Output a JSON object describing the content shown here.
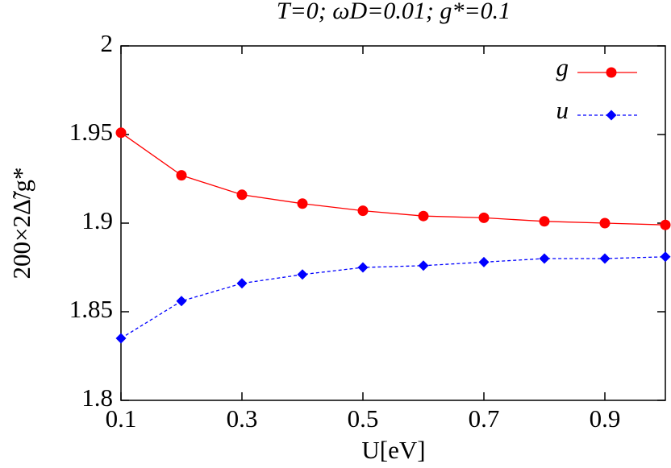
{
  "chart_data": {
    "type": "line",
    "title": "T=0; ωD=0.01; g*=0.1",
    "xlabel": "U[eV]",
    "ylabel": "200×2Δ̃/g*",
    "x": [
      0.1,
      0.2,
      0.3,
      0.4,
      0.5,
      0.6,
      0.7,
      0.8,
      0.9,
      1.0
    ],
    "series": [
      {
        "name": "g",
        "color": "#ff0000",
        "marker": "circle",
        "dashed": false,
        "values": [
          1.951,
          1.927,
          1.916,
          1.911,
          1.907,
          1.904,
          1.903,
          1.901,
          1.9,
          1.899
        ]
      },
      {
        "name": "u",
        "color": "#0000ff",
        "marker": "diamond",
        "dashed": true,
        "values": [
          1.835,
          1.856,
          1.866,
          1.871,
          1.875,
          1.876,
          1.878,
          1.88,
          1.88,
          1.881
        ]
      }
    ],
    "xlim": [
      0.1,
      1.0
    ],
    "xticks": [
      0.1,
      0.3,
      0.5,
      0.7,
      0.9
    ],
    "ylim": [
      1.8,
      2
    ],
    "yticks": [
      1.8,
      1.85,
      1.9,
      1.95,
      2
    ],
    "legend": "upper right"
  }
}
